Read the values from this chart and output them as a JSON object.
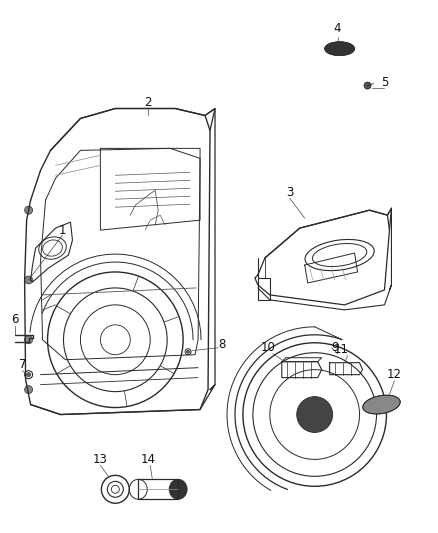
{
  "bg": "#ffffff",
  "lc": "#2a2a2a",
  "tc": "#111111",
  "fs": 8.5,
  "dpi": 100,
  "figw": 4.38,
  "figh": 5.33
}
